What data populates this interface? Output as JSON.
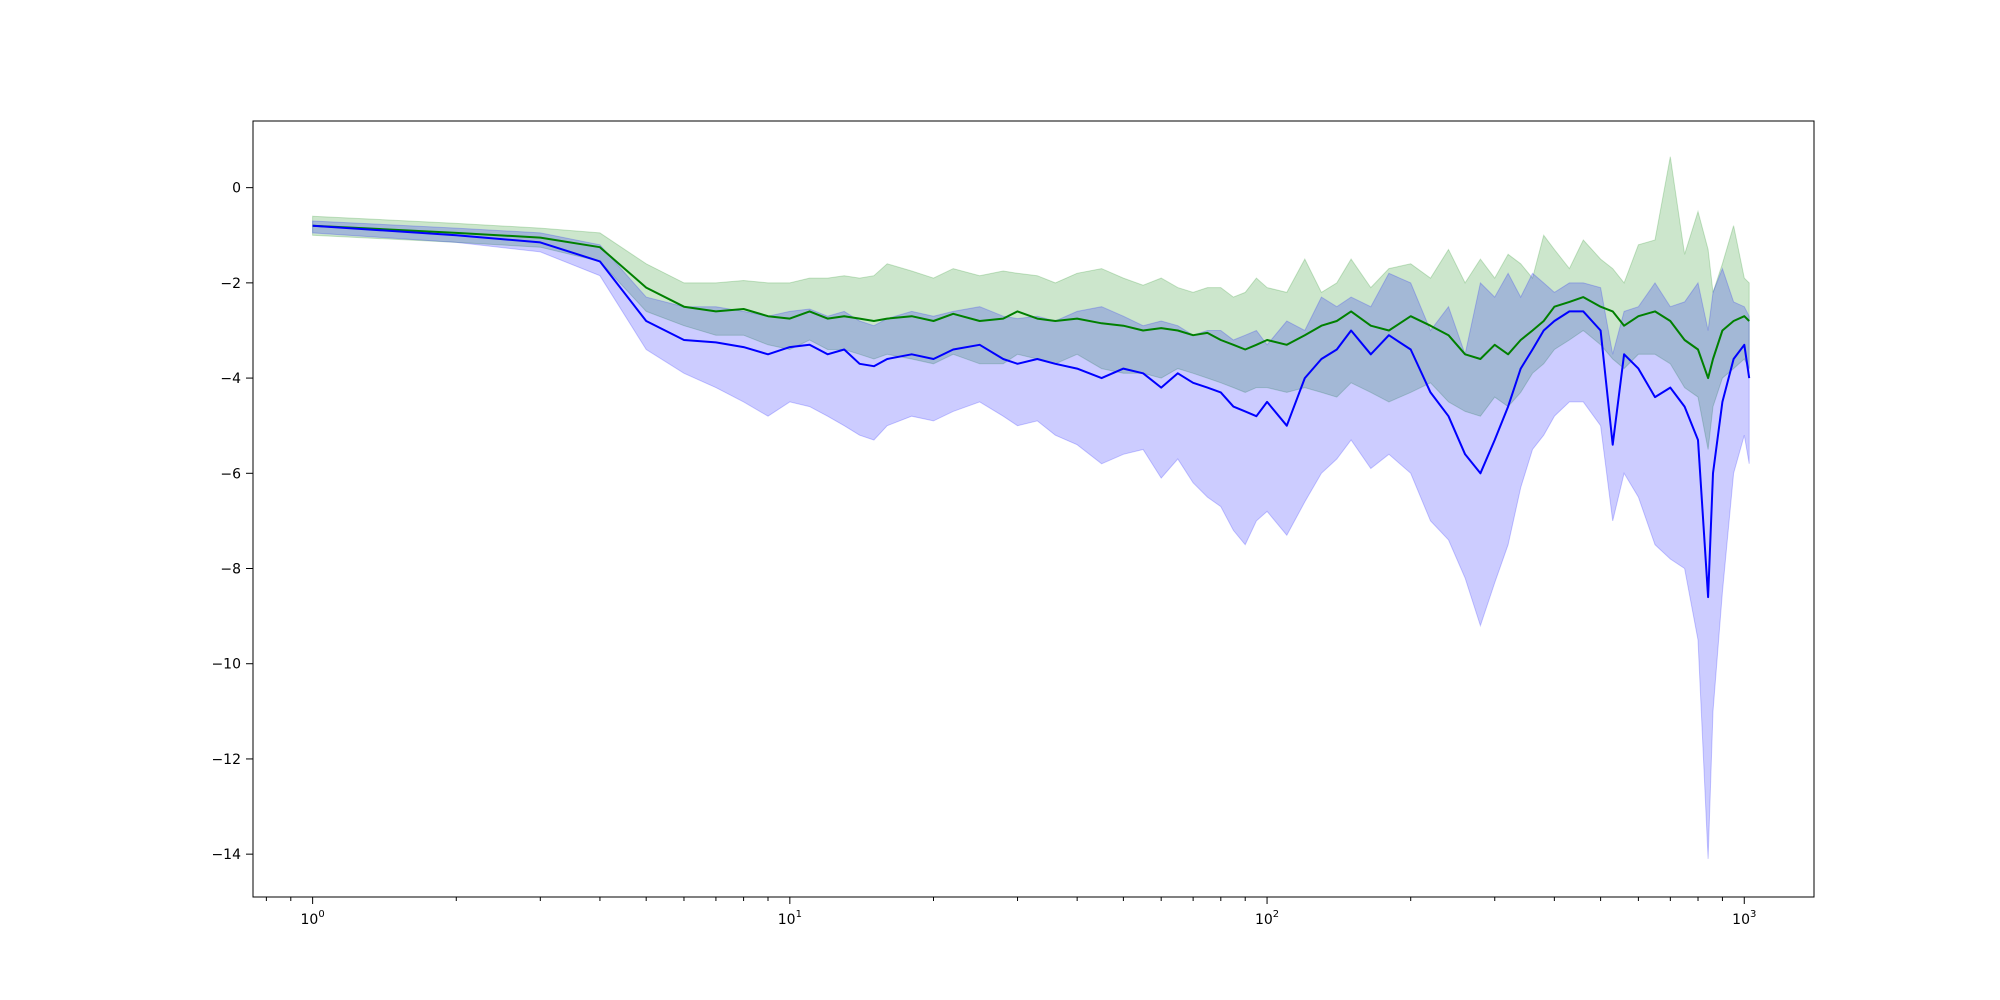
{
  "chart_data": {
    "type": "line",
    "title": "",
    "xlabel": "",
    "ylabel": "",
    "x_scale": "log",
    "xlim": [
      0.75,
      1400
    ],
    "ylim": [
      -14.9,
      1.4
    ],
    "grid": false,
    "x_ticks": [
      {
        "value": 1,
        "base": "10",
        "exp": "0"
      },
      {
        "value": 10,
        "base": "10",
        "exp": "1"
      },
      {
        "value": 100,
        "base": "10",
        "exp": "2"
      },
      {
        "value": 1000,
        "base": "10",
        "exp": "3"
      }
    ],
    "y_ticks": [
      0,
      -2,
      -4,
      -6,
      -8,
      -10,
      -12,
      -14
    ],
    "x": [
      1,
      2,
      3,
      4,
      5,
      6,
      7,
      8,
      9,
      10,
      11,
      12,
      13,
      14,
      15,
      16,
      18,
      20,
      22,
      25,
      28,
      30,
      33,
      36,
      40,
      45,
      50,
      55,
      60,
      65,
      70,
      75,
      80,
      85,
      90,
      95,
      100,
      110,
      120,
      130,
      140,
      150,
      165,
      180,
      200,
      220,
      240,
      260,
      280,
      300,
      320,
      340,
      360,
      380,
      400,
      430,
      460,
      500,
      530,
      560,
      600,
      650,
      700,
      750,
      800,
      840,
      860,
      900,
      950,
      1000,
      1024
    ],
    "series": [
      {
        "color": "#008000",
        "band_color": "#008000",
        "values": [
          -0.8,
          -0.95,
          -1.05,
          -1.25,
          -2.1,
          -2.5,
          -2.6,
          -2.55,
          -2.7,
          -2.75,
          -2.6,
          -2.75,
          -2.7,
          -2.75,
          -2.8,
          -2.75,
          -2.7,
          -2.8,
          -2.65,
          -2.8,
          -2.75,
          -2.6,
          -2.75,
          -2.8,
          -2.75,
          -2.85,
          -2.9,
          -3.0,
          -2.95,
          -3.0,
          -3.1,
          -3.05,
          -3.2,
          -3.3,
          -3.4,
          -3.3,
          -3.2,
          -3.3,
          -3.1,
          -2.9,
          -2.8,
          -2.6,
          -2.9,
          -3.0,
          -2.7,
          -2.9,
          -3.1,
          -3.5,
          -3.6,
          -3.3,
          -3.5,
          -3.2,
          -3.0,
          -2.8,
          -2.5,
          -2.4,
          -2.3,
          -2.5,
          -2.6,
          -2.9,
          -2.7,
          -2.6,
          -2.8,
          -3.2,
          -3.4,
          -4.0,
          -3.6,
          -3.0,
          -2.8,
          -2.7,
          -2.8
        ],
        "upper": [
          -0.6,
          -0.75,
          -0.85,
          -0.95,
          -1.6,
          -2.0,
          -2.0,
          -1.95,
          -2.0,
          -2.0,
          -1.9,
          -1.9,
          -1.85,
          -1.9,
          -1.85,
          -1.6,
          -1.75,
          -1.9,
          -1.7,
          -1.85,
          -1.75,
          -1.8,
          -1.85,
          -2.0,
          -1.8,
          -1.7,
          -1.9,
          -2.05,
          -1.9,
          -2.1,
          -2.2,
          -2.1,
          -2.1,
          -2.3,
          -2.2,
          -1.9,
          -2.1,
          -2.2,
          -1.5,
          -2.2,
          -2.0,
          -1.5,
          -2.1,
          -1.7,
          -1.6,
          -1.9,
          -1.3,
          -2.0,
          -1.5,
          -1.9,
          -1.4,
          -1.6,
          -1.9,
          -1.0,
          -1.3,
          -1.7,
          -1.1,
          -1.5,
          -1.7,
          -2.0,
          -1.2,
          -1.1,
          0.65,
          -1.4,
          -0.5,
          -1.3,
          -2.2,
          -1.6,
          -0.8,
          -1.9,
          -2.0
        ],
        "lower": [
          -1.0,
          -1.15,
          -1.25,
          -1.55,
          -2.6,
          -2.9,
          -3.1,
          -3.1,
          -3.3,
          -3.4,
          -3.2,
          -3.4,
          -3.4,
          -3.5,
          -3.6,
          -3.5,
          -3.6,
          -3.7,
          -3.5,
          -3.7,
          -3.7,
          -3.5,
          -3.6,
          -3.7,
          -3.5,
          -3.8,
          -3.9,
          -3.9,
          -4.0,
          -3.8,
          -3.9,
          -4.0,
          -4.1,
          -4.2,
          -4.3,
          -4.2,
          -4.2,
          -4.3,
          -4.2,
          -4.3,
          -4.4,
          -4.1,
          -4.3,
          -4.5,
          -4.3,
          -4.1,
          -4.5,
          -4.7,
          -4.8,
          -4.4,
          -4.6,
          -4.3,
          -3.9,
          -3.7,
          -3.4,
          -3.2,
          -3.0,
          -3.3,
          -3.6,
          -3.8,
          -3.5,
          -3.5,
          -3.7,
          -4.2,
          -4.4,
          -5.5,
          -4.6,
          -4.0,
          -3.8,
          -3.6,
          -3.8
        ]
      },
      {
        "color": "#0000ff",
        "band_color": "#0000ff",
        "values": [
          -0.8,
          -1.0,
          -1.15,
          -1.55,
          -2.8,
          -3.2,
          -3.25,
          -3.35,
          -3.5,
          -3.35,
          -3.3,
          -3.5,
          -3.4,
          -3.7,
          -3.75,
          -3.6,
          -3.5,
          -3.6,
          -3.4,
          -3.3,
          -3.6,
          -3.7,
          -3.6,
          -3.7,
          -3.8,
          -4.0,
          -3.8,
          -3.9,
          -4.2,
          -3.9,
          -4.1,
          -4.2,
          -4.3,
          -4.6,
          -4.7,
          -4.8,
          -4.5,
          -5.0,
          -4.0,
          -3.6,
          -3.4,
          -3.0,
          -3.5,
          -3.1,
          -3.4,
          -4.3,
          -4.8,
          -5.6,
          -6.0,
          -5.3,
          -4.6,
          -3.8,
          -3.4,
          -3.0,
          -2.8,
          -2.6,
          -2.6,
          -3.0,
          -5.4,
          -3.5,
          -3.8,
          -4.4,
          -4.2,
          -4.6,
          -5.3,
          -8.6,
          -6.0,
          -4.5,
          -3.6,
          -3.3,
          -4.0
        ],
        "upper": [
          -0.7,
          -0.85,
          -0.95,
          -1.2,
          -2.3,
          -2.5,
          -2.5,
          -2.6,
          -2.7,
          -2.6,
          -2.55,
          -2.7,
          -2.6,
          -2.8,
          -2.9,
          -2.75,
          -2.6,
          -2.7,
          -2.6,
          -2.5,
          -2.7,
          -2.75,
          -2.7,
          -2.8,
          -2.6,
          -2.5,
          -2.7,
          -2.9,
          -2.8,
          -2.9,
          -3.1,
          -3.0,
          -3.0,
          -3.2,
          -3.1,
          -3.0,
          -3.3,
          -2.8,
          -3.0,
          -2.3,
          -2.5,
          -2.3,
          -2.5,
          -1.8,
          -2.0,
          -3.0,
          -2.5,
          -3.5,
          -2.0,
          -2.3,
          -1.8,
          -2.3,
          -1.8,
          -2.0,
          -2.2,
          -2.0,
          -2.0,
          -2.1,
          -3.5,
          -2.6,
          -2.5,
          -2.0,
          -2.5,
          -2.4,
          -2.0,
          -3.0,
          -2.2,
          -1.7,
          -2.4,
          -2.5,
          -2.7
        ],
        "lower": [
          -0.95,
          -1.15,
          -1.35,
          -1.85,
          -3.4,
          -3.9,
          -4.2,
          -4.5,
          -4.8,
          -4.5,
          -4.6,
          -4.8,
          -5.0,
          -5.2,
          -5.3,
          -5.0,
          -4.8,
          -4.9,
          -4.7,
          -4.5,
          -4.8,
          -5.0,
          -4.9,
          -5.2,
          -5.4,
          -5.8,
          -5.6,
          -5.5,
          -6.1,
          -5.7,
          -6.2,
          -6.5,
          -6.7,
          -7.2,
          -7.5,
          -7.0,
          -6.8,
          -7.3,
          -6.6,
          -6.0,
          -5.7,
          -5.3,
          -5.9,
          -5.6,
          -6.0,
          -7.0,
          -7.4,
          -8.2,
          -9.2,
          -8.3,
          -7.5,
          -6.3,
          -5.5,
          -5.2,
          -4.8,
          -4.5,
          -4.5,
          -5.0,
          -7.0,
          -6.0,
          -6.5,
          -7.5,
          -7.8,
          -8.0,
          -9.5,
          -14.1,
          -11.0,
          -8.5,
          -6.0,
          -5.2,
          -5.8
        ]
      }
    ]
  }
}
